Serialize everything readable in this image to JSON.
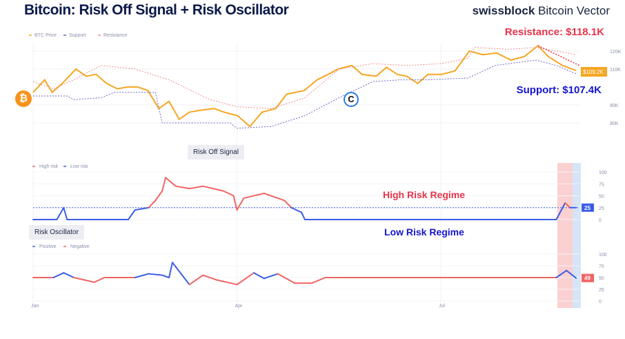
{
  "title": "Bitcoin: Risk Off Signal + Risk Oscillator",
  "brand": {
    "bold": "swissblock",
    "rest": " Bitcoin Vector"
  },
  "annotations": {
    "resistance": "Resistance: $118.1K",
    "support": "Support: $107.4K",
    "high_regime": "High Risk Regime",
    "low_regime": "Low Risk Regime"
  },
  "colors": {
    "price": "#f5a623",
    "support": "#6b63c9",
    "resistance": "#f08a8a",
    "high": "#f26363",
    "low": "#3a5ce8"
  },
  "chart_data": [
    {
      "type": "line",
      "name": "price",
      "legend": [
        "BTC Price",
        "Support",
        "Resistance"
      ],
      "ylim": [
        75,
        125
      ],
      "yticks": [
        {
          "v": 80,
          "l": "80K"
        },
        {
          "v": 90,
          "l": "90K"
        },
        {
          "v": 110,
          "l": "110K"
        },
        {
          "v": 120,
          "l": "120K"
        }
      ],
      "last_label": "$109.2K",
      "series": [
        {
          "name": "BTC Price",
          "x": [
            0,
            0.17,
            0.28,
            0.43,
            0.63,
            0.78,
            0.93,
            1.08,
            1.24,
            1.39,
            1.54,
            1.69,
            1.85,
            2.0,
            2.15,
            2.3,
            2.46,
            2.66,
            2.81,
            3.01,
            3.19,
            3.37,
            3.57,
            3.73,
            3.99,
            4.18,
            4.34,
            4.49,
            4.69,
            4.84,
            5.05,
            5.2,
            5.36,
            5.5,
            5.66,
            5.81,
            6.01,
            6.21,
            6.42,
            6.62,
            6.82,
            7.03,
            7.23,
            7.43,
            7.58,
            7.79,
            7.99
          ],
          "y": [
            97,
            104,
            97,
            102,
            110,
            106,
            107,
            102,
            99,
            100,
            100,
            98,
            88,
            92,
            82,
            86,
            87,
            88,
            86,
            84,
            78,
            86,
            88,
            96,
            98,
            104,
            107,
            110,
            112,
            107,
            106,
            111,
            107,
            106,
            102,
            107,
            107,
            109,
            120,
            118,
            119,
            115,
            117,
            123,
            117,
            112,
            109.2
          ]
        },
        {
          "name": "Support",
          "x": [
            0,
            0.5,
            0.6,
            1.0,
            1.2,
            1.8,
            1.9,
            2.9,
            3.0,
            3.5,
            4.0,
            4.5,
            5.0,
            5.4,
            5.8,
            6.4,
            6.8,
            7.0,
            7.4,
            7.7,
            7.99
          ],
          "y": [
            95,
            95,
            93,
            94,
            97,
            97,
            80,
            80,
            77,
            78,
            84,
            94,
            103,
            104,
            104,
            105,
            112,
            113,
            115,
            112,
            107.4
          ]
        },
        {
          "name": "Resistance",
          "x": [
            0,
            0.3,
            0.6,
            1.0,
            1.5,
            2.0,
            2.6,
            3.0,
            3.5,
            4.0,
            4.5,
            5.0,
            5.5,
            6.0,
            6.4,
            6.5,
            7.0,
            7.4,
            7.7,
            7.99
          ],
          "y": [
            103,
            99,
            104,
            112,
            110,
            104,
            93,
            89,
            88,
            94,
            110,
            113,
            112,
            113,
            116,
            122,
            121,
            122,
            120,
            118.1
          ]
        }
      ]
    },
    {
      "type": "line",
      "name": "risk_off",
      "title": "Risk Off Signal",
      "legend": [
        "High risk",
        "Low risk"
      ],
      "ylim": [
        0,
        100
      ],
      "yticks": [
        0,
        25,
        50,
        75,
        100
      ],
      "threshold": 25,
      "last_label": "25",
      "x": [
        0,
        0.35,
        0.45,
        0.5,
        1.4,
        1.5,
        1.7,
        1.8,
        1.9,
        1.95,
        2.1,
        2.3,
        2.5,
        2.8,
        2.95,
        3.0,
        3.1,
        3.4,
        3.7,
        3.8,
        3.95,
        4.0,
        7.7,
        7.83,
        7.9,
        7.99
      ],
      "y": [
        0,
        0,
        25,
        0,
        0,
        20,
        25,
        40,
        60,
        88,
        70,
        65,
        70,
        60,
        50,
        20,
        45,
        55,
        40,
        25,
        15,
        0,
        0,
        35,
        25,
        25
      ]
    },
    {
      "type": "line",
      "name": "risk_oscillator",
      "title": "Risk Oscillator",
      "legend": [
        "Positive",
        "Negative"
      ],
      "ylim": [
        0,
        100
      ],
      "yticks": [
        0,
        25,
        50,
        75,
        100
      ],
      "baseline": 50,
      "last_label": "49",
      "xticks": [
        {
          "v": 0,
          "l": "Jan"
        },
        {
          "v": 3,
          "l": "Apr"
        },
        {
          "v": 6,
          "l": "Jul"
        }
      ],
      "x": [
        0,
        0.3,
        0.45,
        0.6,
        0.9,
        1.05,
        1.5,
        1.7,
        1.9,
        2.0,
        2.05,
        2.3,
        2.5,
        2.7,
        3.0,
        3.25,
        3.4,
        3.6,
        3.85,
        4.1,
        4.3,
        7.7,
        7.85,
        7.99
      ],
      "y": [
        50,
        50,
        60,
        50,
        40,
        50,
        50,
        58,
        55,
        50,
        82,
        35,
        55,
        45,
        35,
        60,
        48,
        58,
        38,
        38,
        50,
        50,
        65,
        49
      ]
    }
  ]
}
